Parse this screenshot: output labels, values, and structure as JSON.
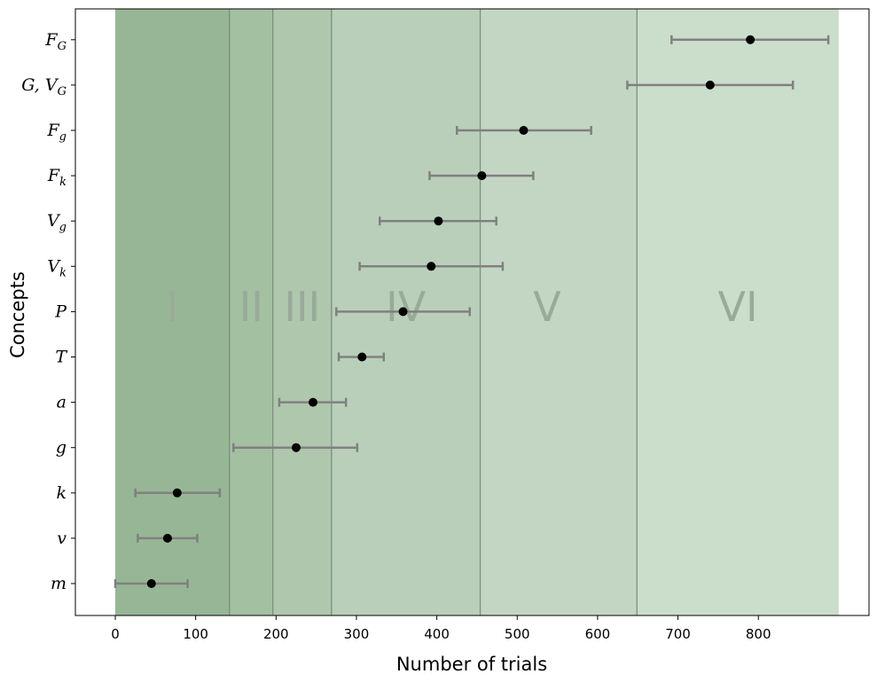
{
  "chart_data": {
    "type": "scatter",
    "style": "horizontal dot plot with error bars",
    "xlabel": "Number of trials",
    "ylabel": "Concepts",
    "xlim": [
      -50,
      935
    ],
    "xticks": [
      "0",
      "100",
      "200",
      "300",
      "400",
      "500",
      "600",
      "700",
      "800"
    ],
    "xtick_values": [
      0,
      100,
      200,
      300,
      400,
      500,
      600,
      700,
      800
    ],
    "grid": false,
    "legend": "none",
    "categories": [
      {
        "label": "m",
        "sub": ""
      },
      {
        "label": "v",
        "sub": ""
      },
      {
        "label": "k",
        "sub": ""
      },
      {
        "label": "g",
        "sub": ""
      },
      {
        "label": "a",
        "sub": ""
      },
      {
        "label": "T",
        "sub": ""
      },
      {
        "label": "P",
        "sub": ""
      },
      {
        "label": "V",
        "sub": "k"
      },
      {
        "label": "V",
        "sub": "g"
      },
      {
        "label": "F",
        "sub": "k"
      },
      {
        "label": "F",
        "sub": "g"
      },
      {
        "label": "G, V",
        "sub": "G"
      },
      {
        "label": "F",
        "sub": "G"
      }
    ],
    "points": [
      {
        "value": 45,
        "low": 0,
        "high": 90
      },
      {
        "value": 65,
        "low": 28,
        "high": 102
      },
      {
        "value": 77,
        "low": 25,
        "high": 130
      },
      {
        "value": 225,
        "low": 147,
        "high": 301
      },
      {
        "value": 246,
        "low": 204,
        "high": 287
      },
      {
        "value": 307,
        "low": 278,
        "high": 334
      },
      {
        "value": 358,
        "low": 275,
        "high": 441
      },
      {
        "value": 393,
        "low": 304,
        "high": 482
      },
      {
        "value": 402,
        "low": 329,
        "high": 474
      },
      {
        "value": 456,
        "low": 391,
        "high": 520
      },
      {
        "value": 508,
        "low": 425,
        "high": 592
      },
      {
        "value": 740,
        "low": 637,
        "high": 843
      },
      {
        "value": 790,
        "low": 692,
        "high": 887
      }
    ],
    "phases": [
      {
        "label": "I",
        "start": 0,
        "end": 142,
        "color": "#97b695"
      },
      {
        "label": "II",
        "start": 142,
        "end": 196,
        "color": "#a3c0a1"
      },
      {
        "label": "III",
        "start": 196,
        "end": 269,
        "color": "#afc7ad"
      },
      {
        "label": "IV",
        "start": 269,
        "end": 454,
        "color": "#b9cfb9"
      },
      {
        "label": "V",
        "start": 454,
        "end": 649,
        "color": "#c3d6c3"
      },
      {
        "label": "VI",
        "start": 649,
        "end": 900,
        "color": "#cbddcb"
      }
    ],
    "phase_label_color": "#9aaa9a",
    "boundary_color": "#7d8f7d",
    "marker_color": "#000000",
    "errorbar_color": "#808080"
  }
}
